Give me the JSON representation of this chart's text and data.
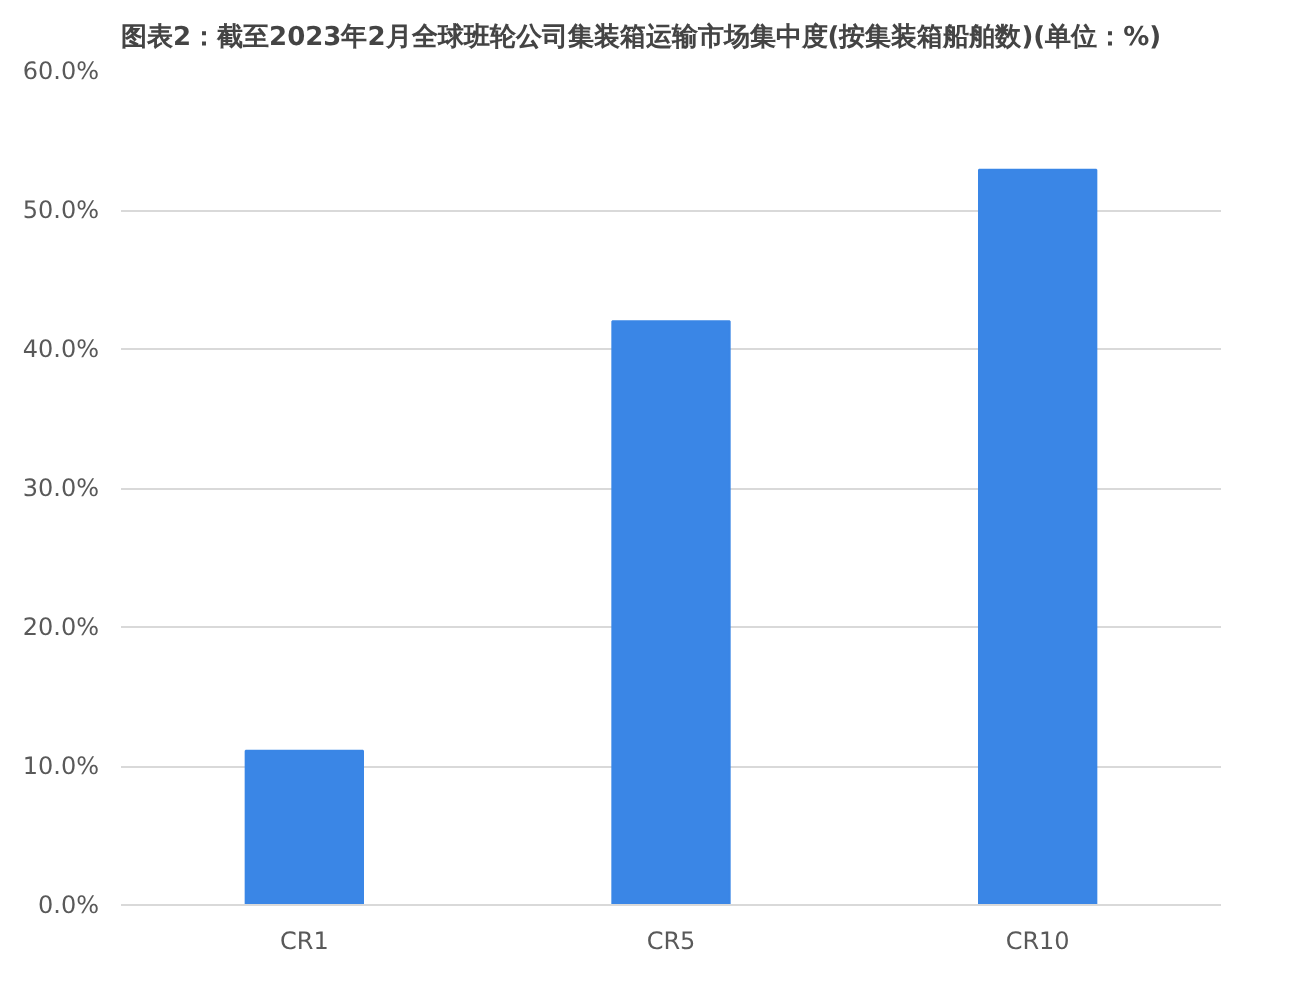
{
  "chart_data": {
    "type": "bar",
    "title": "图表2：截至2023年2月全球班轮公司集装箱运输市场集中度(按集装箱船舶数)(单位：%)",
    "categories": [
      "CR1",
      "CR5",
      "CR10"
    ],
    "values": [
      11.1,
      42.0,
      52.9
    ],
    "color": "#3a86e6",
    "ylim": [
      0,
      60
    ],
    "yticks": [
      {
        "value": 0,
        "label": "0.0%"
      },
      {
        "value": 10,
        "label": "10.0%"
      },
      {
        "value": 20,
        "label": "20.0%"
      },
      {
        "value": 30,
        "label": "30.0%"
      },
      {
        "value": 40,
        "label": "40.0%"
      },
      {
        "value": 50,
        "label": "50.0%"
      },
      {
        "value": 60,
        "label": "60.0%"
      }
    ],
    "grid": "y"
  }
}
